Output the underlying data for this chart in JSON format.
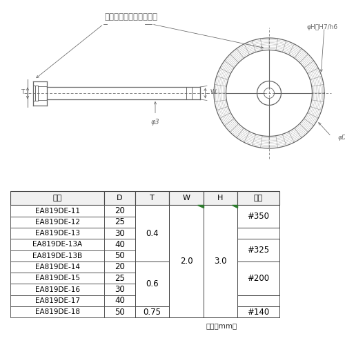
{
  "background_color": "#ffffff",
  "diagram_label": "ダイヤモンドプレート部",
  "label_phi3": "φ3",
  "label_phiH": "φH　H7/h6",
  "label_phiD": "φD",
  "label_T": "T",
  "label_W": "W",
  "table_headers": [
    "品番",
    "D",
    "T",
    "W",
    "H",
    "粒度"
  ],
  "table_rows": [
    [
      "EA819DE-11",
      "20"
    ],
    [
      "EA819DE-12",
      "25"
    ],
    [
      "EA819DE-13",
      "30"
    ],
    [
      "EA819DE-13A",
      "40"
    ],
    [
      "EA819DE-13B",
      "50"
    ],
    [
      "EA819DE-14",
      "20"
    ],
    [
      "EA819DE-15",
      "25"
    ],
    [
      "EA819DE-16",
      "30"
    ],
    [
      "EA819DE-17",
      "40"
    ],
    [
      "EA819DE-18",
      "50"
    ]
  ],
  "T_spans": [
    [
      0,
      4,
      "0.4"
    ],
    [
      5,
      8,
      "0.6"
    ],
    [
      9,
      9,
      "0.75"
    ]
  ],
  "W_spans": [
    [
      0,
      9,
      "2.0"
    ]
  ],
  "H_spans": [
    [
      0,
      9,
      "3.0"
    ]
  ],
  "grade_spans": [
    [
      0,
      1,
      "#350"
    ],
    [
      3,
      4,
      "#325"
    ],
    [
      5,
      7,
      "#200"
    ],
    [
      9,
      9,
      "#140"
    ]
  ],
  "unit_note": "（単位mm）",
  "line_color": "#666666",
  "green_dot_color": "#2d7a2d"
}
